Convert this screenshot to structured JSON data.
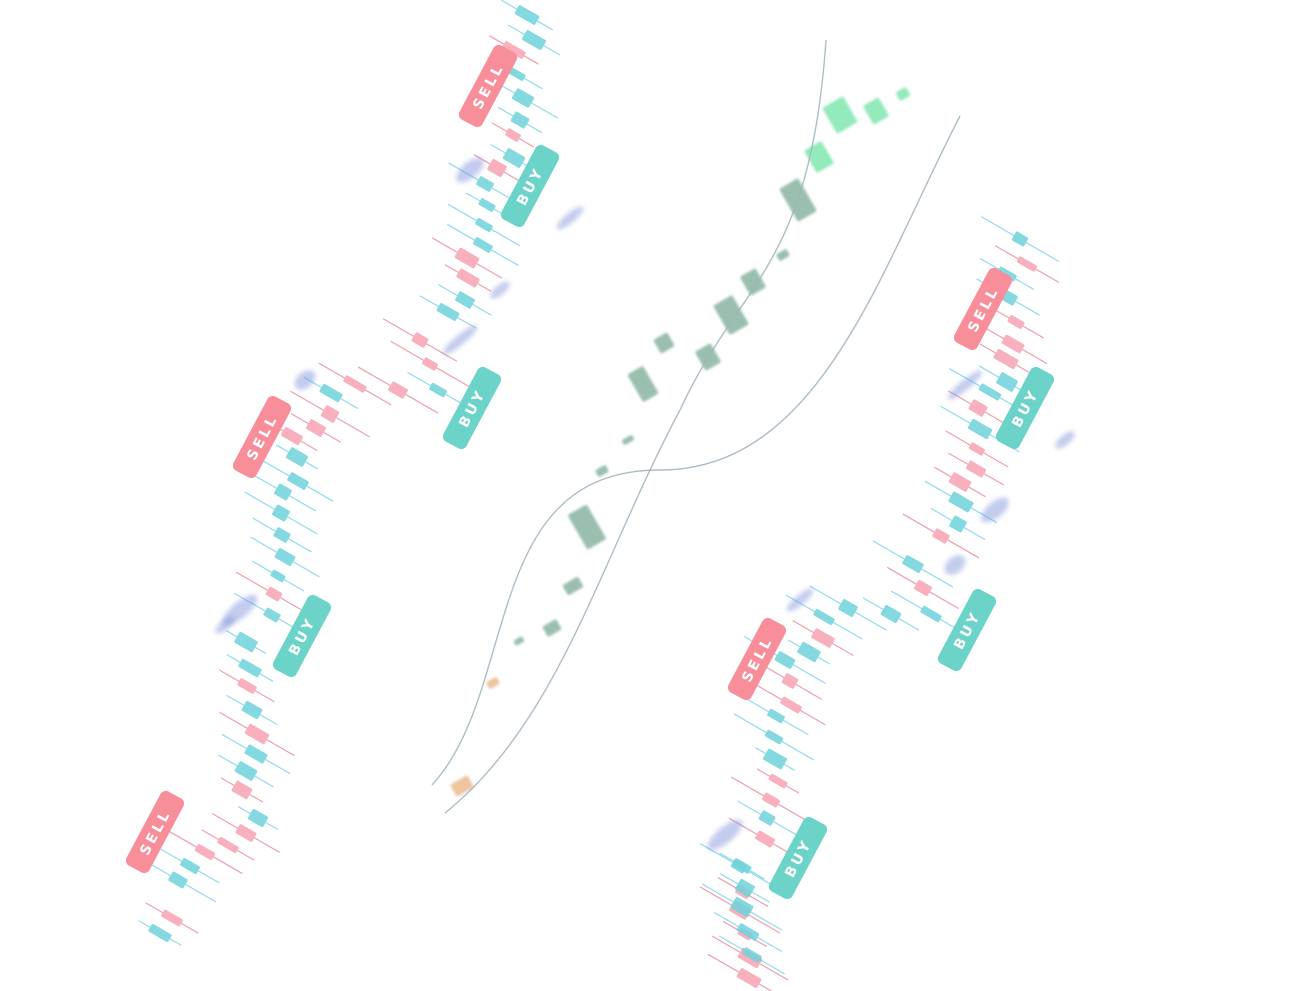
{
  "colors": {
    "background": "#ffffff",
    "bull_candle": "#6fd3db",
    "bear_candle": "#f7a3b5",
    "bull_wick": "#45c3e6",
    "bear_wick": "#e25f77",
    "sell_badge": "#f88e9a",
    "buy_badge": "#6cd3c9",
    "smoke": "#7d8fd8",
    "center_candle_start": "#e9b080",
    "center_candle_end": "#6fe3a4",
    "curve_line": "#9fb3bd"
  },
  "badges": {
    "sell_label": "SELL",
    "buy_label": "BUY"
  },
  "icons": {
    "sell": "sell-signal-badge",
    "buy": "buy-signal-badge",
    "smoke": "smoke-wisp-decoration"
  }
}
